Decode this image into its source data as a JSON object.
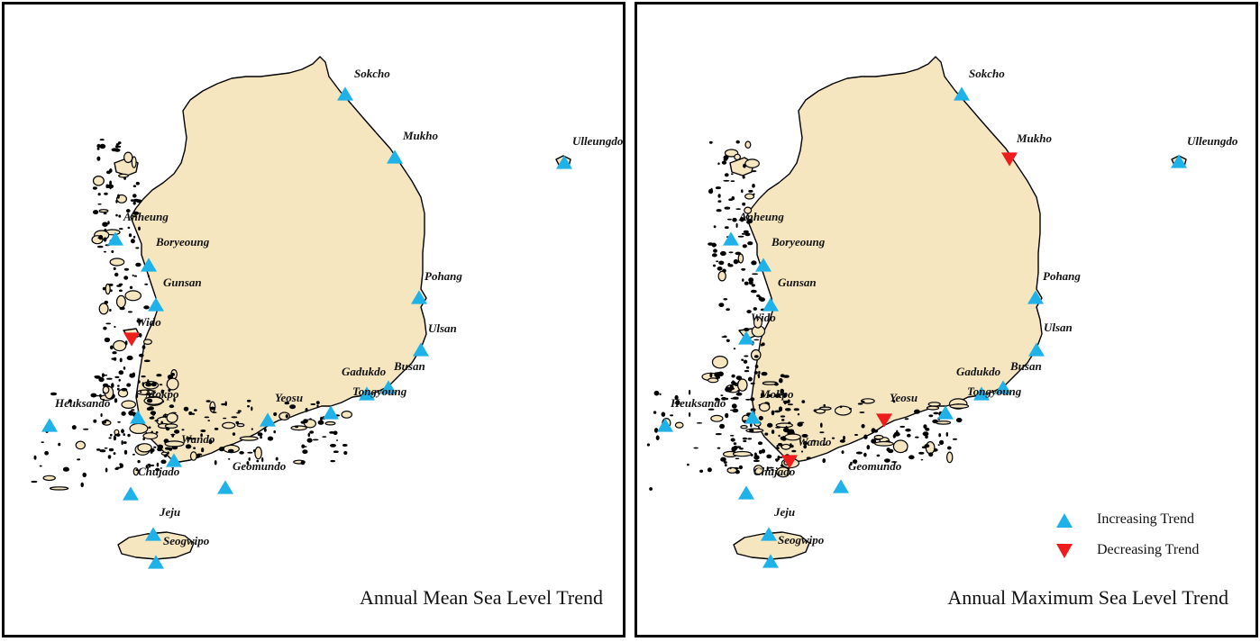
{
  "colors": {
    "land": "#f5e6bf",
    "coast": "#000000",
    "increasing": "#1fb2e8",
    "decreasing": "#ee1c1c"
  },
  "panels": [
    {
      "id": "left",
      "title": "Annual Mean Sea Level Trend",
      "stations": [
        {
          "name": "Sokcho",
          "trend": "increasing"
        },
        {
          "name": "Mukho",
          "trend": "increasing"
        },
        {
          "name": "Ulleungdo",
          "trend": "increasing"
        },
        {
          "name": "Anheung",
          "trend": "increasing"
        },
        {
          "name": "Boryeoung",
          "trend": "increasing"
        },
        {
          "name": "Gunsan",
          "trend": "increasing"
        },
        {
          "name": "Wido",
          "trend": "decreasing"
        },
        {
          "name": "Pohang",
          "trend": "increasing"
        },
        {
          "name": "Ulsan",
          "trend": "increasing"
        },
        {
          "name": "Busan",
          "trend": "increasing"
        },
        {
          "name": "Gadukdo",
          "trend": "increasing"
        },
        {
          "name": "Tongyoung",
          "trend": "increasing"
        },
        {
          "name": "Yeosu",
          "trend": "increasing"
        },
        {
          "name": "Mokpo",
          "trend": "increasing"
        },
        {
          "name": "Heuksando",
          "trend": "increasing"
        },
        {
          "name": "Wando",
          "trend": "increasing"
        },
        {
          "name": "Chujado",
          "trend": "increasing"
        },
        {
          "name": "Geomundo",
          "trend": "increasing"
        },
        {
          "name": "Jeju",
          "trend": "increasing"
        },
        {
          "name": "Seogwipo",
          "trend": "increasing"
        }
      ]
    },
    {
      "id": "right",
      "title": "Annual Maximum Sea Level Trend",
      "stations": [
        {
          "name": "Sokcho",
          "trend": "increasing"
        },
        {
          "name": "Mukho",
          "trend": "decreasing"
        },
        {
          "name": "Ulleungdo",
          "trend": "increasing"
        },
        {
          "name": "Anheung",
          "trend": "increasing"
        },
        {
          "name": "Boryeoung",
          "trend": "increasing"
        },
        {
          "name": "Gunsan",
          "trend": "increasing"
        },
        {
          "name": "Wido",
          "trend": "increasing"
        },
        {
          "name": "Pohang",
          "trend": "increasing"
        },
        {
          "name": "Ulsan",
          "trend": "increasing"
        },
        {
          "name": "Busan",
          "trend": "increasing"
        },
        {
          "name": "Gadukdo",
          "trend": "increasing"
        },
        {
          "name": "Tongyoung",
          "trend": "increasing"
        },
        {
          "name": "Yeosu",
          "trend": "decreasing"
        },
        {
          "name": "Mokpo",
          "trend": "increasing"
        },
        {
          "name": "Heuksando",
          "trend": "increasing"
        },
        {
          "name": "Wando",
          "trend": "decreasing"
        },
        {
          "name": "Chujado",
          "trend": "increasing"
        },
        {
          "name": "Geomundo",
          "trend": "increasing"
        },
        {
          "name": "Jeju",
          "trend": "increasing"
        },
        {
          "name": "Seogwipo",
          "trend": "increasing"
        }
      ]
    }
  ],
  "legend": {
    "increasing_label": "Increasing Trend",
    "decreasing_label": "Decreasing Trend"
  }
}
